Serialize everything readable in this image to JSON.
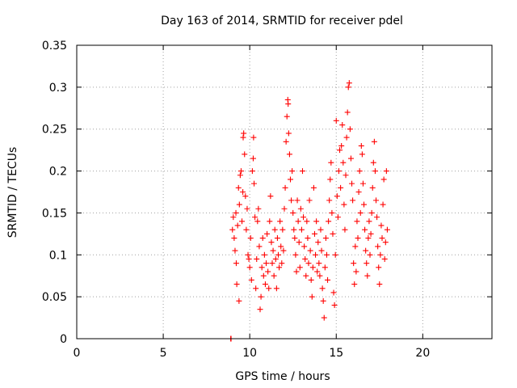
{
  "chart_data": {
    "type": "scatter",
    "title": "Day 163 of 2014, SRMTID for receiver pdel",
    "xlabel": "GPS time / hours",
    "ylabel": "SRMTID / TECUs",
    "xlim": [
      0,
      24
    ],
    "ylim": [
      0,
      0.35
    ],
    "xticks": [
      0,
      5,
      10,
      15,
      20
    ],
    "xtick_labels": [
      "0",
      "5",
      "10",
      "15",
      "20"
    ],
    "yticks": [
      0,
      0.05,
      0.1,
      0.15,
      0.2,
      0.25,
      0.3,
      0.35
    ],
    "ytick_labels": [
      "0",
      "0.05",
      "0.1",
      "0.15",
      "0.2",
      "0.25",
      "0.3",
      "0.35"
    ],
    "grid": true,
    "marker": "plus",
    "color": "#ff0000",
    "series": [
      {
        "name": "pdel",
        "points": [
          [
            8.9,
            0.0
          ],
          [
            8.92,
            0.0
          ],
          [
            9.0,
            0.13
          ],
          [
            9.05,
            0.145
          ],
          [
            9.1,
            0.12
          ],
          [
            9.15,
            0.105
          ],
          [
            9.2,
            0.15
          ],
          [
            9.22,
            0.09
          ],
          [
            9.25,
            0.065
          ],
          [
            9.3,
            0.135
          ],
          [
            9.35,
            0.18
          ],
          [
            9.38,
            0.045
          ],
          [
            9.4,
            0.16
          ],
          [
            9.45,
            0.195
          ],
          [
            9.5,
            0.2
          ],
          [
            9.55,
            0.14
          ],
          [
            9.6,
            0.175
          ],
          [
            9.62,
            0.24
          ],
          [
            9.65,
            0.245
          ],
          [
            9.7,
            0.22
          ],
          [
            9.75,
            0.17
          ],
          [
            9.8,
            0.13
          ],
          [
            9.85,
            0.155
          ],
          [
            9.9,
            0.1
          ],
          [
            9.95,
            0.095
          ],
          [
            10.0,
            0.085
          ],
          [
            10.05,
            0.12
          ],
          [
            10.1,
            0.07
          ],
          [
            10.15,
            0.2
          ],
          [
            10.2,
            0.215
          ],
          [
            10.22,
            0.24
          ],
          [
            10.25,
            0.185
          ],
          [
            10.3,
            0.145
          ],
          [
            10.35,
            0.06
          ],
          [
            10.4,
            0.095
          ],
          [
            10.45,
            0.14
          ],
          [
            10.5,
            0.155
          ],
          [
            10.55,
            0.11
          ],
          [
            10.6,
            0.035
          ],
          [
            10.65,
            0.05
          ],
          [
            10.7,
            0.085
          ],
          [
            10.75,
            0.12
          ],
          [
            10.8,
            0.075
          ],
          [
            10.85,
            0.1
          ],
          [
            10.9,
            0.065
          ],
          [
            10.95,
            0.09
          ],
          [
            11.0,
            0.125
          ],
          [
            11.05,
            0.08
          ],
          [
            11.1,
            0.06
          ],
          [
            11.15,
            0.14
          ],
          [
            11.2,
            0.17
          ],
          [
            11.25,
            0.115
          ],
          [
            11.3,
            0.09
          ],
          [
            11.35,
            0.105
          ],
          [
            11.4,
            0.075
          ],
          [
            11.45,
            0.13
          ],
          [
            11.5,
            0.095
          ],
          [
            11.55,
            0.06
          ],
          [
            11.6,
            0.12
          ],
          [
            11.65,
            0.1
          ],
          [
            11.7,
            0.085
          ],
          [
            11.75,
            0.14
          ],
          [
            11.8,
            0.11
          ],
          [
            11.85,
            0.09
          ],
          [
            11.9,
            0.13
          ],
          [
            11.95,
            0.105
          ],
          [
            12.0,
            0.155
          ],
          [
            12.05,
            0.18
          ],
          [
            12.1,
            0.235
          ],
          [
            12.15,
            0.265
          ],
          [
            12.2,
            0.285
          ],
          [
            12.22,
            0.28
          ],
          [
            12.25,
            0.245
          ],
          [
            12.3,
            0.22
          ],
          [
            12.35,
            0.19
          ],
          [
            12.4,
            0.165
          ],
          [
            12.45,
            0.2
          ],
          [
            12.5,
            0.15
          ],
          [
            12.55,
            0.13
          ],
          [
            12.6,
            0.12
          ],
          [
            12.65,
            0.1
          ],
          [
            12.7,
            0.08
          ],
          [
            12.75,
            0.165
          ],
          [
            12.8,
            0.14
          ],
          [
            12.85,
            0.115
          ],
          [
            12.9,
            0.085
          ],
          [
            12.95,
            0.155
          ],
          [
            13.0,
            0.13
          ],
          [
            13.05,
            0.2
          ],
          [
            13.1,
            0.145
          ],
          [
            13.15,
            0.11
          ],
          [
            13.2,
            0.095
          ],
          [
            13.25,
            0.075
          ],
          [
            13.3,
            0.14
          ],
          [
            13.35,
            0.12
          ],
          [
            13.4,
            0.09
          ],
          [
            13.45,
            0.165
          ],
          [
            13.5,
            0.105
          ],
          [
            13.55,
            0.07
          ],
          [
            13.6,
            0.05
          ],
          [
            13.65,
            0.085
          ],
          [
            13.7,
            0.18
          ],
          [
            13.75,
            0.125
          ],
          [
            13.8,
            0.1
          ],
          [
            13.85,
            0.14
          ],
          [
            13.9,
            0.08
          ],
          [
            13.95,
            0.115
          ],
          [
            14.0,
            0.09
          ],
          [
            14.05,
            0.075
          ],
          [
            14.1,
            0.13
          ],
          [
            14.15,
            0.105
          ],
          [
            14.2,
            0.06
          ],
          [
            14.25,
            0.045
          ],
          [
            14.3,
            0.025
          ],
          [
            14.35,
            0.085
          ],
          [
            14.4,
            0.12
          ],
          [
            14.45,
            0.1
          ],
          [
            14.5,
            0.07
          ],
          [
            14.55,
            0.14
          ],
          [
            14.6,
            0.165
          ],
          [
            14.65,
            0.19
          ],
          [
            14.7,
            0.21
          ],
          [
            14.75,
            0.15
          ],
          [
            14.8,
            0.125
          ],
          [
            14.85,
            0.055
          ],
          [
            14.9,
            0.04
          ],
          [
            14.95,
            0.1
          ],
          [
            15.0,
            0.26
          ],
          [
            15.05,
            0.17
          ],
          [
            15.1,
            0.145
          ],
          [
            15.15,
            0.2
          ],
          [
            15.2,
            0.225
          ],
          [
            15.25,
            0.18
          ],
          [
            15.3,
            0.23
          ],
          [
            15.35,
            0.255
          ],
          [
            15.4,
            0.21
          ],
          [
            15.45,
            0.16
          ],
          [
            15.5,
            0.13
          ],
          [
            15.55,
            0.195
          ],
          [
            15.6,
            0.24
          ],
          [
            15.65,
            0.27
          ],
          [
            15.7,
            0.3
          ],
          [
            15.75,
            0.305
          ],
          [
            15.8,
            0.25
          ],
          [
            15.85,
            0.215
          ],
          [
            15.9,
            0.185
          ],
          [
            15.95,
            0.165
          ],
          [
            16.0,
            0.09
          ],
          [
            16.05,
            0.065
          ],
          [
            16.1,
            0.11
          ],
          [
            16.15,
            0.08
          ],
          [
            16.2,
            0.14
          ],
          [
            16.25,
            0.12
          ],
          [
            16.3,
            0.175
          ],
          [
            16.35,
            0.2
          ],
          [
            16.4,
            0.15
          ],
          [
            16.45,
            0.23
          ],
          [
            16.5,
            0.22
          ],
          [
            16.55,
            0.185
          ],
          [
            16.6,
            0.16
          ],
          [
            16.65,
            0.13
          ],
          [
            16.7,
            0.105
          ],
          [
            16.75,
            0.09
          ],
          [
            16.8,
            0.075
          ],
          [
            16.85,
            0.12
          ],
          [
            16.9,
            0.14
          ],
          [
            16.95,
            0.1
          ],
          [
            17.0,
            0.125
          ],
          [
            17.05,
            0.15
          ],
          [
            17.1,
            0.18
          ],
          [
            17.15,
            0.21
          ],
          [
            17.2,
            0.235
          ],
          [
            17.25,
            0.2
          ],
          [
            17.3,
            0.165
          ],
          [
            17.35,
            0.145
          ],
          [
            17.4,
            0.11
          ],
          [
            17.45,
            0.085
          ],
          [
            17.5,
            0.065
          ],
          [
            17.55,
            0.1
          ],
          [
            17.6,
            0.135
          ],
          [
            17.65,
            0.12
          ],
          [
            17.7,
            0.16
          ],
          [
            17.75,
            0.19
          ],
          [
            17.8,
            0.095
          ],
          [
            17.85,
            0.115
          ],
          [
            17.9,
            0.2
          ],
          [
            17.95,
            0.13
          ]
        ]
      }
    ]
  }
}
